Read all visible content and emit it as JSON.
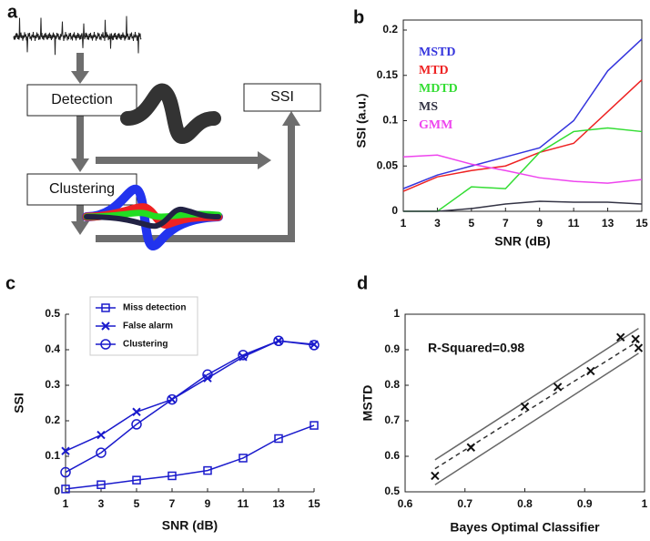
{
  "panel_labels": [
    "a",
    "b",
    "c",
    "d"
  ],
  "diagram": {
    "nodes": [
      {
        "label": "Detection"
      },
      {
        "label": "SSI"
      },
      {
        "label": "Clustering"
      }
    ]
  },
  "chart_data": [
    {
      "type": "line",
      "xlabel": "SNR (dB)",
      "ylabel": "SSI (a.u.)",
      "x": [
        1,
        3,
        5,
        7,
        9,
        11,
        13,
        15
      ],
      "xlim": [
        1,
        15
      ],
      "xticks": [
        1,
        3,
        5,
        7,
        9,
        11,
        13,
        15
      ],
      "ylim": [
        0,
        0.2
      ],
      "yticks": [
        0,
        0.05,
        0.1,
        0.15,
        0.2
      ],
      "box": true,
      "legend": "upper left",
      "series": [
        {
          "name": "MSTD",
          "color": "#3535dd",
          "values": [
            0.025,
            0.04,
            0.05,
            0.06,
            0.07,
            0.1,
            0.155,
            0.19
          ]
        },
        {
          "name": "MTD",
          "color": "#ee2222",
          "values": [
            0.022,
            0.038,
            0.045,
            0.05,
            0.065,
            0.075,
            0.11,
            0.145
          ]
        },
        {
          "name": "MDTD",
          "color": "#33dd33",
          "values": [
            0,
            0,
            0.027,
            0.025,
            0.065,
            0.088,
            0.092,
            0.088
          ]
        },
        {
          "name": "MS",
          "color": "#333344",
          "values": [
            0,
            0,
            0.003,
            0.008,
            0.011,
            0.01,
            0.01,
            0.008
          ]
        },
        {
          "name": "GMM",
          "color": "#ee44ee",
          "values": [
            0.06,
            0.062,
            0.052,
            0.045,
            0.037,
            0.033,
            0.031,
            0.035
          ]
        }
      ]
    },
    {
      "type": "line",
      "xlabel": "SNR (dB)",
      "ylabel": "SSI",
      "x": [
        1,
        3,
        5,
        7,
        9,
        11,
        13,
        15
      ],
      "xlim": [
        1,
        15
      ],
      "xticks": [
        1,
        3,
        5,
        7,
        9,
        11,
        13,
        15
      ],
      "ylim": [
        0,
        0.5
      ],
      "yticks": [
        0,
        0.1,
        0.2,
        0.3,
        0.4,
        0.5
      ],
      "box": false,
      "legend": "upper left",
      "series": [
        {
          "name": "Miss detection",
          "color": "#1a1acc",
          "marker": "square",
          "values": [
            0.008,
            0.02,
            0.033,
            0.045,
            0.06,
            0.095,
            0.15,
            0.187
          ]
        },
        {
          "name": "False alarm",
          "color": "#1a1acc",
          "marker": "x",
          "values": [
            0.115,
            0.16,
            0.225,
            0.26,
            0.32,
            0.38,
            0.425,
            0.415
          ]
        },
        {
          "name": "Clustering",
          "color": "#1a1acc",
          "marker": "circle",
          "values": [
            0.055,
            0.11,
            0.19,
            0.26,
            0.33,
            0.385,
            0.425,
            0.413
          ]
        }
      ]
    },
    {
      "type": "scatter",
      "xlabel": "Bayes Optimal Classifier",
      "ylabel": "MSTD",
      "annotation": "R-Squared=0.98",
      "x": [
        0.65,
        0.71,
        0.8,
        0.855,
        0.91,
        0.96,
        0.985,
        0.99
      ],
      "y": [
        0.545,
        0.625,
        0.74,
        0.795,
        0.84,
        0.935,
        0.93,
        0.905
      ],
      "marker": "x",
      "color": "#111111",
      "xlim": [
        0.6,
        1
      ],
      "xticks": [
        0.6,
        0.7,
        0.8,
        0.9,
        1
      ],
      "ylim": [
        0.5,
        1
      ],
      "yticks": [
        0.5,
        0.6,
        0.7,
        0.8,
        0.9,
        1
      ],
      "box": true,
      "lines": [
        {
          "style": "dashed",
          "color": "#333333",
          "x": [
            0.65,
            0.99
          ],
          "y": [
            0.565,
            0.925
          ]
        },
        {
          "style": "solid",
          "color": "#666666",
          "x": [
            0.65,
            0.99
          ],
          "y": [
            0.59,
            0.96
          ]
        },
        {
          "style": "solid",
          "color": "#666666",
          "x": [
            0.65,
            0.99
          ],
          "y": [
            0.52,
            0.89
          ]
        }
      ]
    }
  ]
}
